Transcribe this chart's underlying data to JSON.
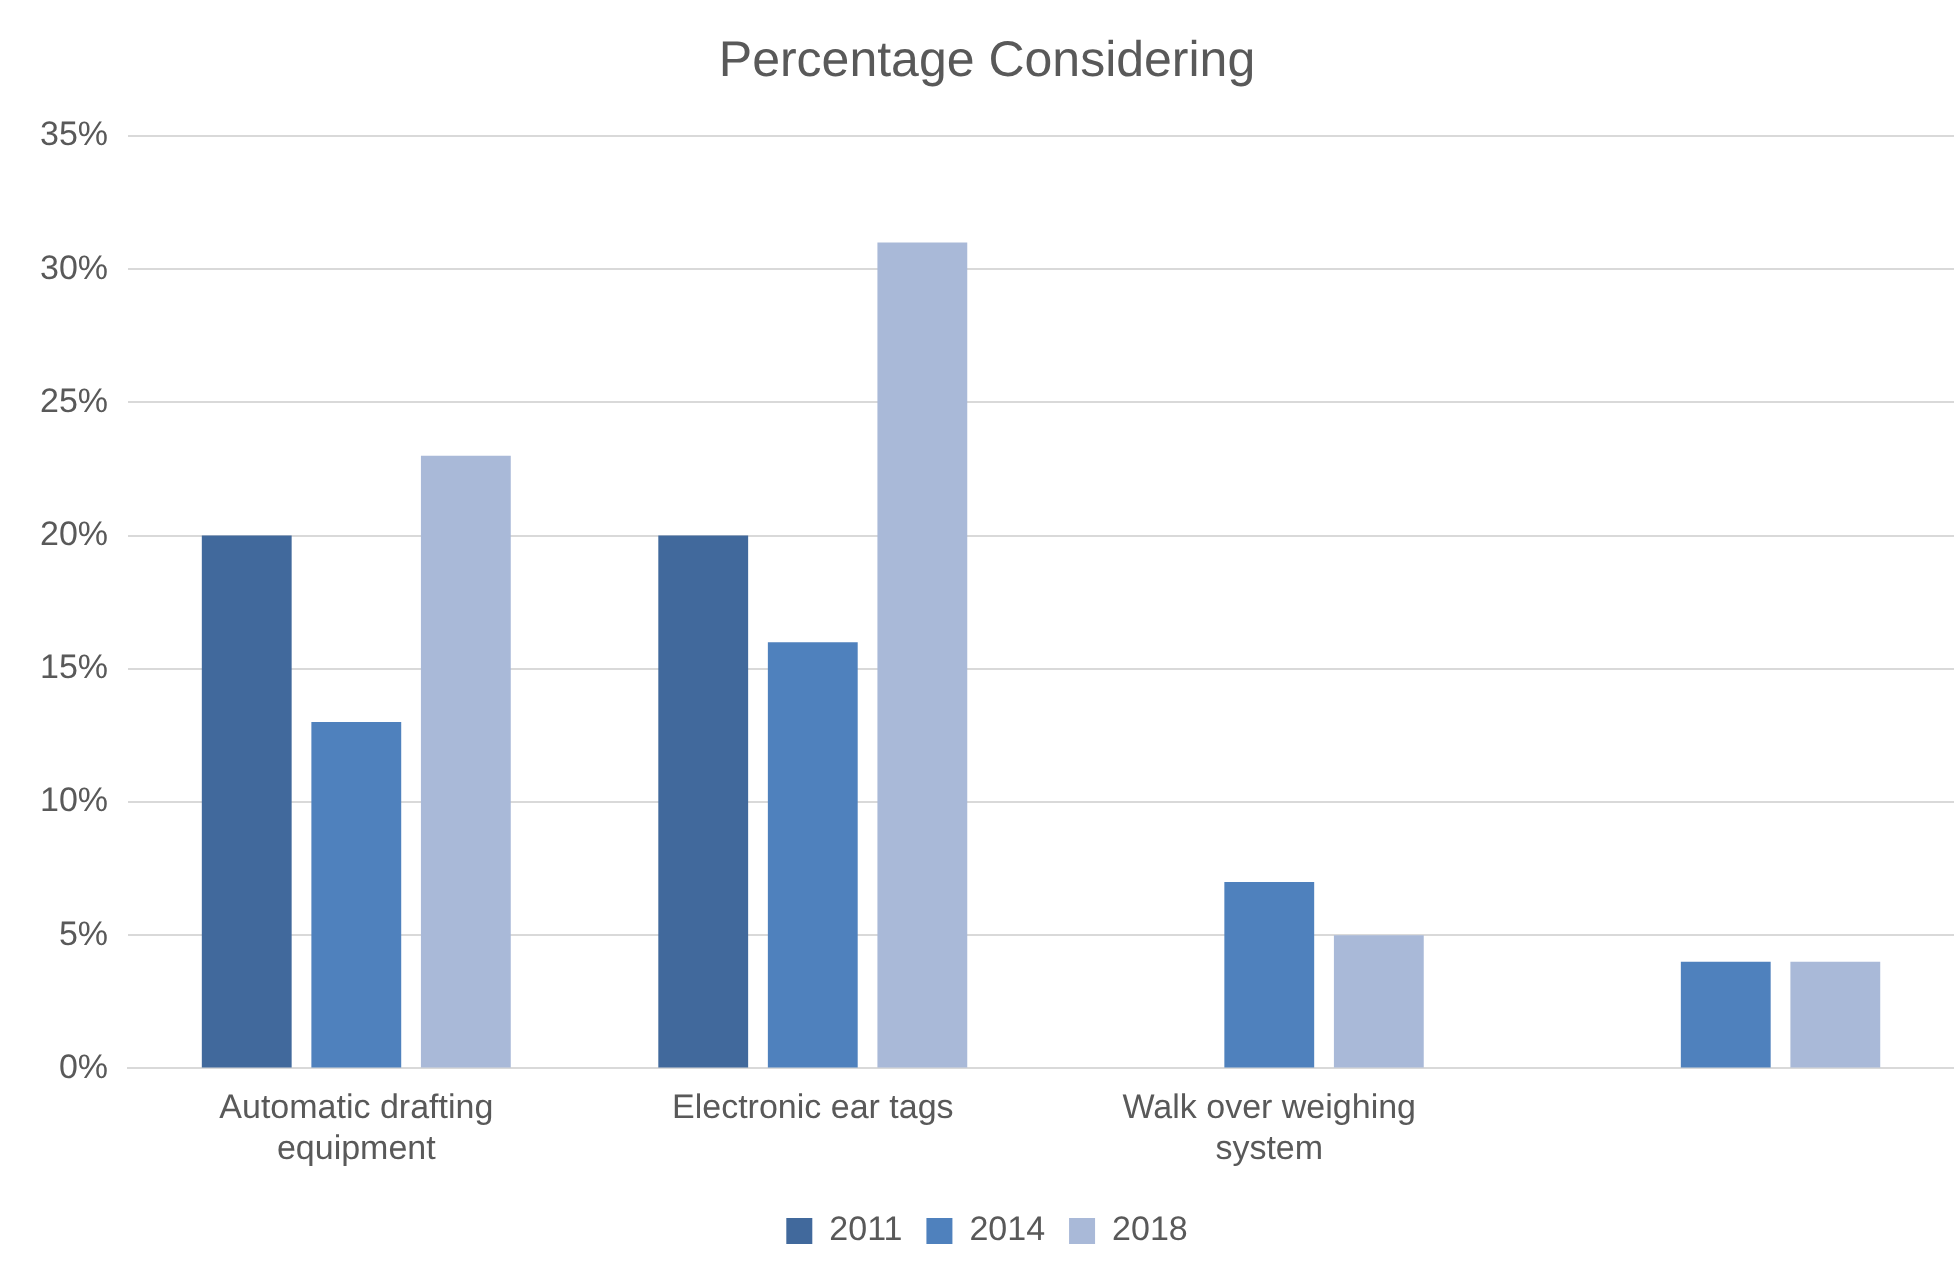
{
  "chart_data": {
    "type": "bar",
    "title": "Percentage Considering",
    "categories": [
      "Automatic drafting equipment",
      "Electronic ear tags",
      "Walk over weighing system",
      null
    ],
    "series": [
      {
        "name": "2011",
        "color": "#41699c",
        "values": [
          20,
          20,
          null,
          null
        ]
      },
      {
        "name": "2014",
        "color": "#4f81bd",
        "values": [
          13,
          16,
          7,
          4
        ]
      },
      {
        "name": "2018",
        "color": "#a9b9d8",
        "values": [
          23,
          31,
          5,
          4
        ]
      }
    ],
    "ylim": [
      0,
      35
    ],
    "yticks": [
      {
        "value": 0,
        "label": "0%"
      },
      {
        "value": 5,
        "label": "5%"
      },
      {
        "value": 10,
        "label": "10%"
      },
      {
        "value": 15,
        "label": "15%"
      },
      {
        "value": 20,
        "label": "20%"
      },
      {
        "value": 25,
        "label": "25%"
      },
      {
        "value": 30,
        "label": "30%"
      },
      {
        "value": 35,
        "label": "35%"
      }
    ],
    "grid": "y",
    "legend": "bottom"
  }
}
